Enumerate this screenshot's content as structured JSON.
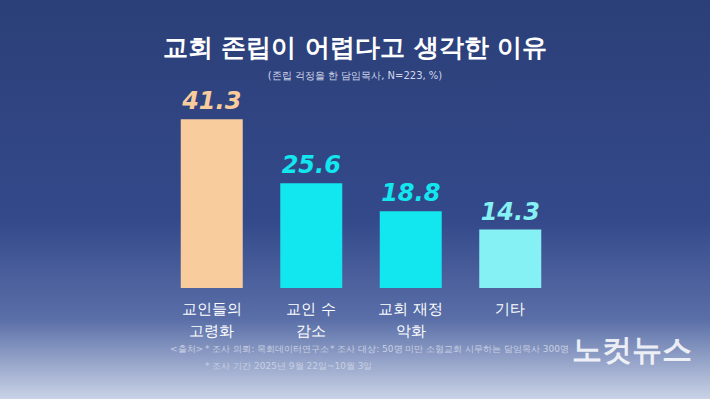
{
  "chart_data": {
    "type": "bar",
    "title": "교회 존립이 어렵다고 생각한 이유",
    "subtitle": "(존립 걱정을 한 담임목사, N=223, %)",
    "categories": [
      "교인들의\n고령화",
      "교인 수\n감소",
      "교회 재정\n악화",
      "기타"
    ],
    "values": [
      41.3,
      25.6,
      18.8,
      14.3
    ],
    "colors": [
      "#f9cc9e",
      "#12e6ee",
      "#12e6ee",
      "#86f1f4"
    ],
    "ylim": [
      0,
      46
    ],
    "grid": false,
    "data_labels": true,
    "tick_labels": "x",
    "notes": [
      "<출처>",
      "* 조사 의뢰: 목회데이터연구소",
      "* 조사 대상: 50명 미만 소형교회 시무하는 담임목사 300명",
      "* 조사 기간 2025년 9월 22일~10월 3일"
    ],
    "watermark": "노컷뉴스"
  }
}
